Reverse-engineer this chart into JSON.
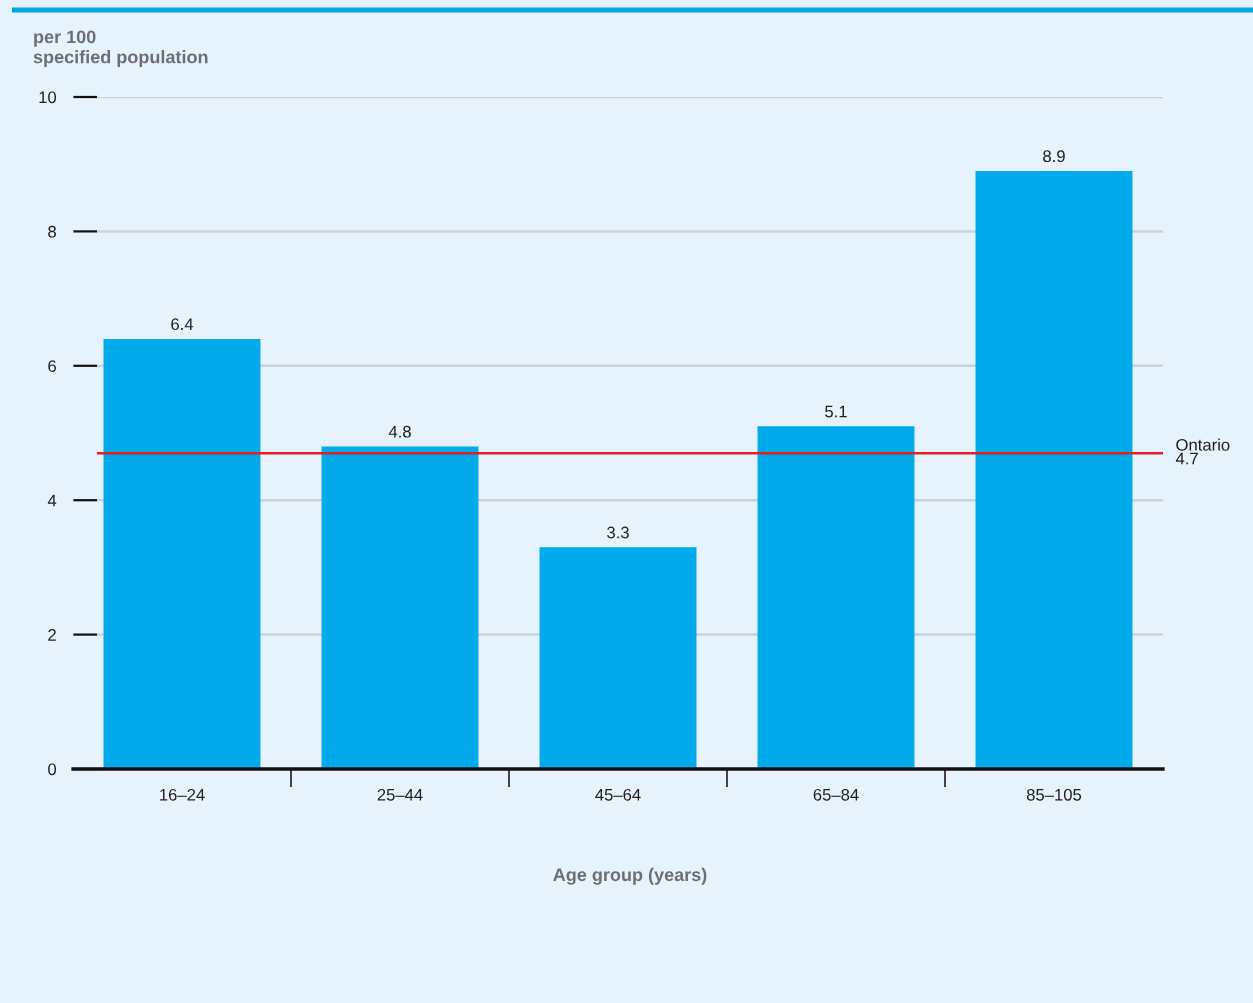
{
  "chart_data": {
    "type": "bar",
    "ylabel": "per 100\nspecified population",
    "xlabel": "Age group (years)",
    "categories": [
      "16–24",
      "25–44",
      "45–64",
      "65–84",
      "85–105"
    ],
    "values": [
      6.4,
      4.8,
      3.3,
      5.1,
      8.9
    ],
    "color": "#00aaeb",
    "data_labels": true,
    "ylim": [
      0,
      10
    ],
    "yticks": [
      0,
      2,
      4,
      6,
      8,
      10
    ],
    "grid": "y",
    "ref_lines": [
      {
        "axis": "y",
        "value": 4.7,
        "label": "Ontario\n4.7",
        "color": "#e31e24"
      }
    ]
  }
}
